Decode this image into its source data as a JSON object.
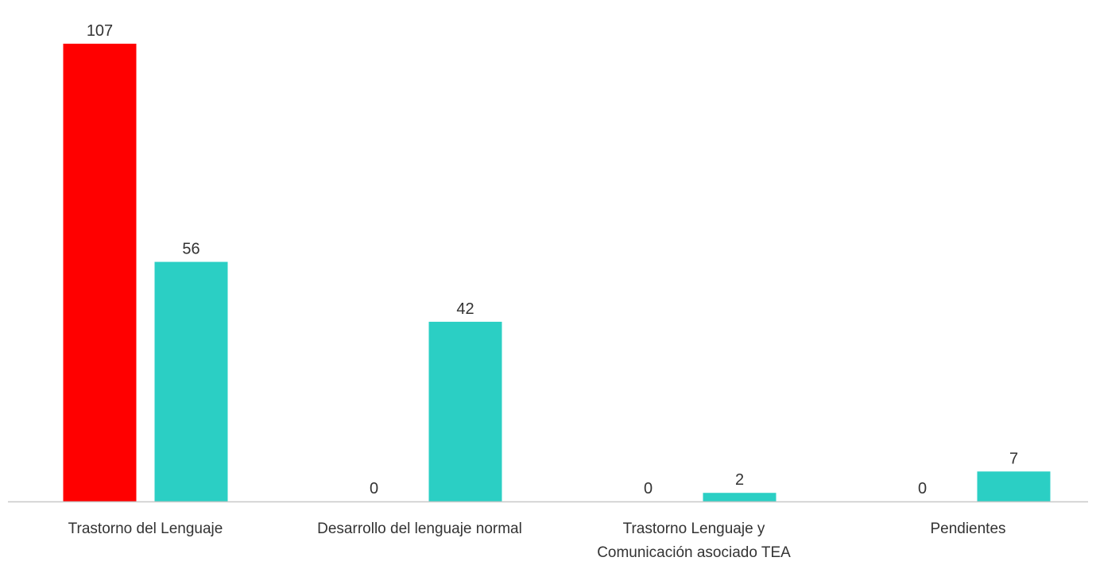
{
  "chart_data": {
    "type": "bar",
    "categories": [
      [
        "Trastorno del Lenguaje"
      ],
      [
        "Desarrollo del lenguaje normal"
      ],
      [
        "Trastorno Lenguaje y",
        "Comunicación asociado TEA"
      ],
      [
        "Pendientes"
      ]
    ],
    "series": [
      {
        "values": [
          107,
          0,
          0,
          0
        ],
        "color": "#ff0000"
      },
      {
        "values": [
          56,
          42,
          2,
          7
        ],
        "color": "#2bcfc4"
      }
    ],
    "data_labels": true,
    "ylim": [
      0,
      107
    ],
    "grid": false,
    "legend": "none",
    "axis_color": "#c8c8c8"
  }
}
